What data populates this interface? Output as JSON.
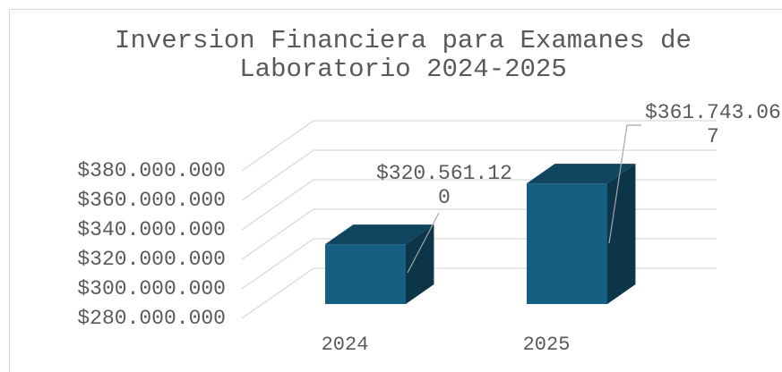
{
  "chart_data": {
    "type": "bar3d",
    "title": "Inversion Financiera para Examanes de Laboratorio 2024-2025",
    "categories": [
      "2024",
      "2025"
    ],
    "values": [
      320561120,
      361743067
    ],
    "value_labels": [
      "$320.561.120",
      "$361.743.067"
    ],
    "color": "#156082",
    "ylim": [
      280000000,
      380000000
    ],
    "yticks": [
      {
        "value": 280000000,
        "label": "$280.000.000"
      },
      {
        "value": 300000000,
        "label": "$300.000.000"
      },
      {
        "value": 320000000,
        "label": "$320.000.000"
      },
      {
        "value": 340000000,
        "label": "$340.000.000"
      },
      {
        "value": 360000000,
        "label": "$360.000.000"
      },
      {
        "value": 380000000,
        "label": "$380.000.000"
      }
    ],
    "grid": true
  }
}
